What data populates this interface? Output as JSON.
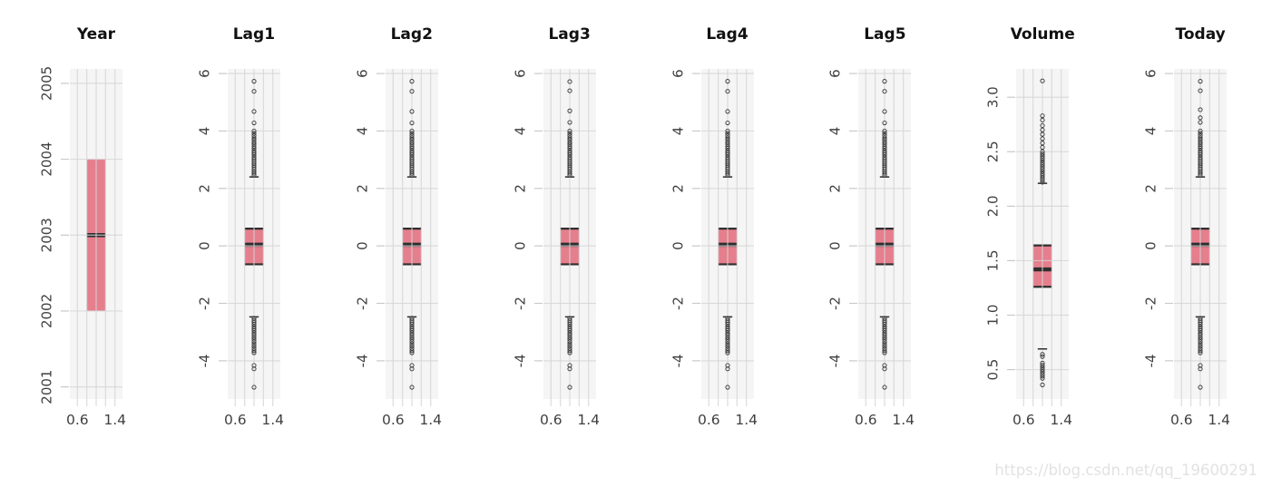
{
  "figure": {
    "background": "#ffffff",
    "panel_background": "#f5f5f5",
    "grid_color": "#dcdcdc",
    "grid_overlay_color": "rgba(213,213,213,0.8)",
    "axis_tick_color": "#c9c9c9",
    "axis_label_color": "#404040",
    "title_color": "#111111",
    "box_fill": "#e57f8d",
    "box_line_color": "#2e2e2e",
    "outlier_color": "#3b3b3b"
  },
  "watermark": {
    "text": "https://blog.csdn.net/qq_19600291",
    "color": "#e2e2e2"
  },
  "chart_data": [
    {
      "type": "box",
      "title": "Year",
      "ylim": [
        2000.84,
        2005.19
      ],
      "yticks": [
        2001,
        2002,
        2003,
        2004,
        2005
      ],
      "ytick_labels": [
        "2001",
        "2002",
        "2003",
        "2004",
        "2005"
      ],
      "xticks": [
        0.6,
        0.8,
        1.0,
        1.2,
        1.4
      ],
      "xtick_label_values": [
        0.6,
        1.4
      ],
      "xtick_labels": [
        "0.6",
        "1.4"
      ],
      "box": {
        "q1": 2002,
        "median": 2003,
        "q3": 2004,
        "x_center": 1.0,
        "width": 0.4,
        "hinges_visible": false
      },
      "whisker_caps": [],
      "outliers": []
    },
    {
      "type": "box",
      "title": "Lag1",
      "ylim": [
        -5.33,
        6.16
      ],
      "yticks": [
        -4,
        -2,
        0,
        2,
        4,
        6
      ],
      "ytick_labels": [
        "-4",
        "-2",
        "0",
        "2",
        "4",
        "6"
      ],
      "xticks": [
        0.6,
        0.8,
        1.0,
        1.2,
        1.4
      ],
      "xtick_label_values": [
        0.6,
        1.4
      ],
      "xtick_labels": [
        "0.6",
        "1.4"
      ],
      "box": {
        "q1": -0.64,
        "median": 0.04,
        "q3": 0.6,
        "x_center": 1.0,
        "width": 0.4,
        "hinges_visible": true
      },
      "whisker_caps": [
        2.4,
        -2.47
      ],
      "outliers": [
        2.46,
        2.53,
        2.6,
        2.67,
        2.74,
        2.81,
        2.88,
        2.95,
        3.02,
        3.09,
        3.17,
        3.24,
        3.31,
        3.39,
        3.46,
        3.54,
        3.61,
        3.69,
        3.76,
        3.84,
        3.92,
        4.0,
        4.28,
        4.68,
        5.38,
        5.73,
        -2.52,
        -2.59,
        -2.66,
        -2.73,
        -2.81,
        -2.88,
        -2.95,
        -3.03,
        -3.1,
        -3.18,
        -3.25,
        -3.33,
        -3.41,
        -3.49,
        -3.57,
        -3.65,
        -3.72,
        -4.16,
        -4.28,
        -4.92
      ]
    },
    {
      "type": "box",
      "title": "Lag2",
      "ylim": [
        -5.33,
        6.16
      ],
      "yticks": [
        -4,
        -2,
        0,
        2,
        4,
        6
      ],
      "ytick_labels": [
        "-4",
        "-2",
        "0",
        "2",
        "4",
        "6"
      ],
      "xticks": [
        0.6,
        0.8,
        1.0,
        1.2,
        1.4
      ],
      "xtick_label_values": [
        0.6,
        1.4
      ],
      "xtick_labels": [
        "0.6",
        "1.4"
      ],
      "box": {
        "q1": -0.64,
        "median": 0.04,
        "q3": 0.6,
        "x_center": 1.0,
        "width": 0.4,
        "hinges_visible": true
      },
      "whisker_caps": [
        2.4,
        -2.47
      ],
      "outliers": [
        2.46,
        2.53,
        2.6,
        2.67,
        2.74,
        2.81,
        2.88,
        2.95,
        3.02,
        3.09,
        3.17,
        3.24,
        3.31,
        3.39,
        3.46,
        3.54,
        3.61,
        3.69,
        3.76,
        3.84,
        3.92,
        4.0,
        4.28,
        4.68,
        5.38,
        5.73,
        -2.52,
        -2.59,
        -2.66,
        -2.73,
        -2.81,
        -2.88,
        -2.95,
        -3.03,
        -3.1,
        -3.18,
        -3.25,
        -3.33,
        -3.41,
        -3.49,
        -3.57,
        -3.65,
        -3.72,
        -4.16,
        -4.28,
        -4.92
      ]
    },
    {
      "type": "box",
      "title": "Lag3",
      "ylim": [
        -5.33,
        6.16
      ],
      "yticks": [
        -4,
        -2,
        0,
        2,
        4,
        6
      ],
      "ytick_labels": [
        "-4",
        "-2",
        "0",
        "2",
        "4",
        "6"
      ],
      "xticks": [
        0.6,
        0.8,
        1.0,
        1.2,
        1.4
      ],
      "xtick_label_values": [
        0.6,
        1.4
      ],
      "xtick_labels": [
        "0.6",
        "1.4"
      ],
      "box": {
        "q1": -0.64,
        "median": 0.04,
        "q3": 0.6,
        "x_center": 1.0,
        "width": 0.4,
        "hinges_visible": true
      },
      "whisker_caps": [
        2.4,
        -2.47
      ],
      "outliers": [
        2.46,
        2.53,
        2.6,
        2.67,
        2.74,
        2.81,
        2.88,
        2.95,
        3.02,
        3.09,
        3.17,
        3.24,
        3.31,
        3.39,
        3.46,
        3.54,
        3.61,
        3.69,
        3.76,
        3.84,
        3.92,
        4.0,
        4.3,
        4.7,
        5.4,
        5.72,
        -2.52,
        -2.59,
        -2.66,
        -2.73,
        -2.81,
        -2.88,
        -2.95,
        -3.03,
        -3.1,
        -3.18,
        -3.25,
        -3.33,
        -3.41,
        -3.49,
        -3.57,
        -3.65,
        -3.72,
        -4.16,
        -4.28,
        -4.92
      ]
    },
    {
      "type": "box",
      "title": "Lag4",
      "ylim": [
        -5.33,
        6.16
      ],
      "yticks": [
        -4,
        -2,
        0,
        2,
        4,
        6
      ],
      "ytick_labels": [
        "-4",
        "-2",
        "0",
        "2",
        "4",
        "6"
      ],
      "xticks": [
        0.6,
        0.8,
        1.0,
        1.2,
        1.4
      ],
      "xtick_label_values": [
        0.6,
        1.4
      ],
      "xtick_labels": [
        "0.6",
        "1.4"
      ],
      "box": {
        "q1": -0.64,
        "median": 0.04,
        "q3": 0.6,
        "x_center": 1.0,
        "width": 0.4,
        "hinges_visible": true
      },
      "whisker_caps": [
        2.4,
        -2.47
      ],
      "outliers": [
        2.46,
        2.53,
        2.6,
        2.67,
        2.74,
        2.81,
        2.88,
        2.95,
        3.02,
        3.09,
        3.17,
        3.24,
        3.31,
        3.39,
        3.46,
        3.54,
        3.61,
        3.69,
        3.76,
        3.84,
        3.92,
        4.0,
        4.28,
        4.68,
        5.38,
        5.73,
        -2.52,
        -2.59,
        -2.66,
        -2.73,
        -2.81,
        -2.88,
        -2.95,
        -3.03,
        -3.1,
        -3.18,
        -3.25,
        -3.33,
        -3.41,
        -3.49,
        -3.57,
        -3.65,
        -3.72,
        -4.16,
        -4.28,
        -4.92
      ]
    },
    {
      "type": "box",
      "title": "Lag5",
      "ylim": [
        -5.33,
        6.16
      ],
      "yticks": [
        -4,
        -2,
        0,
        2,
        4,
        6
      ],
      "ytick_labels": [
        "-4",
        "-2",
        "0",
        "2",
        "4",
        "6"
      ],
      "xticks": [
        0.6,
        0.8,
        1.0,
        1.2,
        1.4
      ],
      "xtick_label_values": [
        0.6,
        1.4
      ],
      "xtick_labels": [
        "0.6",
        "1.4"
      ],
      "box": {
        "q1": -0.64,
        "median": 0.04,
        "q3": 0.6,
        "x_center": 1.0,
        "width": 0.4,
        "hinges_visible": true
      },
      "whisker_caps": [
        2.4,
        -2.47
      ],
      "outliers": [
        2.46,
        2.53,
        2.6,
        2.67,
        2.74,
        2.81,
        2.88,
        2.95,
        3.02,
        3.09,
        3.17,
        3.24,
        3.31,
        3.39,
        3.46,
        3.54,
        3.61,
        3.69,
        3.76,
        3.84,
        3.92,
        4.0,
        4.28,
        4.68,
        5.38,
        5.73,
        -2.52,
        -2.59,
        -2.66,
        -2.73,
        -2.81,
        -2.88,
        -2.95,
        -3.03,
        -3.1,
        -3.18,
        -3.25,
        -3.33,
        -3.41,
        -3.49,
        -3.57,
        -3.65,
        -3.72,
        -4.16,
        -4.28,
        -4.92
      ]
    },
    {
      "type": "box",
      "title": "Volume",
      "ylim": [
        0.23,
        3.26
      ],
      "yticks": [
        0.5,
        1.0,
        1.5,
        2.0,
        2.5,
        3.0
      ],
      "ytick_labels": [
        "0.5",
        "1.0",
        "1.5",
        "2.0",
        "2.5",
        "3.0"
      ],
      "xticks": [
        0.6,
        0.8,
        1.0,
        1.2,
        1.4
      ],
      "xtick_label_values": [
        0.6,
        1.4
      ],
      "xtick_labels": [
        "0.6",
        "1.4"
      ],
      "box": {
        "q1": 1.26,
        "median": 1.42,
        "q3": 1.64,
        "x_center": 1.0,
        "width": 0.4,
        "hinges_visible": true
      },
      "whisker_caps": [
        2.21,
        0.69
      ],
      "outliers": [
        2.22,
        2.24,
        2.26,
        2.28,
        2.3,
        2.32,
        2.34,
        2.36,
        2.38,
        2.4,
        2.42,
        2.44,
        2.46,
        2.48,
        2.5,
        2.54,
        2.58,
        2.62,
        2.66,
        2.7,
        2.74,
        2.79,
        2.83,
        3.15,
        0.64,
        0.62,
        0.56,
        0.54,
        0.52,
        0.5,
        0.48,
        0.46,
        0.44,
        0.42,
        0.36
      ]
    },
    {
      "type": "box",
      "title": "Today",
      "ylim": [
        -5.33,
        6.16
      ],
      "yticks": [
        -4,
        -2,
        0,
        2,
        4,
        6
      ],
      "ytick_labels": [
        "-4",
        "-2",
        "0",
        "2",
        "4",
        "6"
      ],
      "xticks": [
        0.6,
        0.8,
        1.0,
        1.2,
        1.4
      ],
      "xtick_label_values": [
        0.6,
        1.4
      ],
      "xtick_labels": [
        "0.6",
        "1.4"
      ],
      "box": {
        "q1": -0.64,
        "median": 0.04,
        "q3": 0.6,
        "x_center": 1.0,
        "width": 0.4,
        "hinges_visible": true
      },
      "whisker_caps": [
        2.4,
        -2.47
      ],
      "outliers": [
        2.46,
        2.53,
        2.6,
        2.67,
        2.74,
        2.81,
        2.88,
        2.95,
        3.02,
        3.09,
        3.17,
        3.24,
        3.31,
        3.39,
        3.46,
        3.54,
        3.61,
        3.69,
        3.76,
        3.84,
        3.92,
        4.0,
        4.3,
        4.46,
        4.74,
        5.4,
        5.73,
        -2.52,
        -2.59,
        -2.66,
        -2.73,
        -2.81,
        -2.88,
        -2.95,
        -3.03,
        -3.1,
        -3.18,
        -3.25,
        -3.33,
        -3.41,
        -3.49,
        -3.57,
        -3.65,
        -3.72,
        -4.16,
        -4.28,
        -4.92
      ]
    }
  ]
}
